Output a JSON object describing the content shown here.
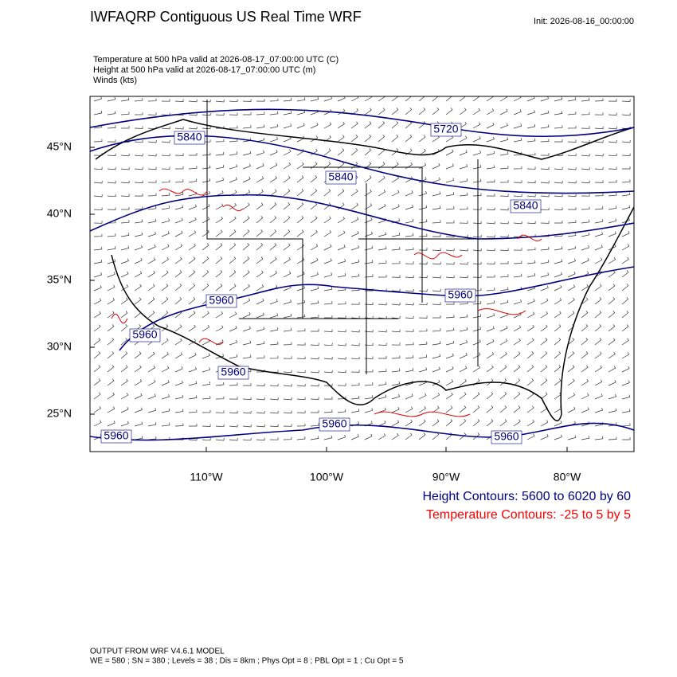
{
  "header": {
    "title": "IWFAQRP Contiguous US Real Time WRF",
    "init": "Init: 2026-08-16_00:00:00"
  },
  "fields": [
    "Temperature at 500 hPa valid at 2026-08-17_07:00:00 UTC   (C)",
    "Height at 500 hPa valid at 2026-08-17_07:00:00 UTC   (m)",
    "Winds   (kts)"
  ],
  "map": {
    "lat_labels": [
      "45°N",
      "40°N",
      "35°N",
      "30°N",
      "25°N"
    ],
    "lon_labels": [
      "110°W",
      "100°W",
      "90°W",
      "80°W"
    ],
    "contour_labels": [
      "5840",
      "5720",
      "5840",
      "5840",
      "5960",
      "5960",
      "5960",
      "5960",
      "5960",
      "5960",
      "5960"
    ]
  },
  "legend": [
    "Height Contours: 5600 to 6020 by 60",
    "Temperature Contours: -25 to 5 by 5"
  ],
  "footer": [
    "OUTPUT FROM WRF V4.6.1 MODEL",
    "WE = 580 ; SN = 380 ; Levels = 38 ; Dis = 8km ; Phys Opt = 8 ; PBL Opt = 1 ; Cu Opt = 5"
  ]
}
